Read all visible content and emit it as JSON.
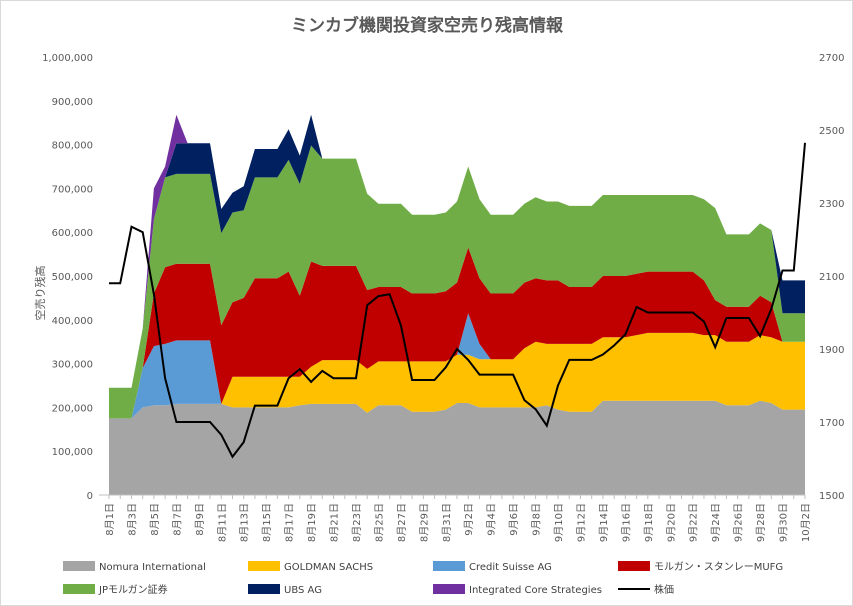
{
  "chart_data": {
    "type": "area",
    "title": "ミンカブ機関投資家空売り残高情報",
    "ylabel": "空売り残高",
    "ylim": [
      0,
      1000000
    ],
    "y2lim": [
      1500,
      2700
    ],
    "grid": false,
    "legend_position": "bottom",
    "y_ticks": [
      "1,000,000",
      "900,000",
      "800,000",
      "700,000",
      "600,000",
      "500,000",
      "400,000",
      "300,000",
      "200,000",
      "100,000",
      "0"
    ],
    "y2_ticks": [
      "2700",
      "2500",
      "2300",
      "2100",
      "1900",
      "1700",
      "1500"
    ],
    "x_tick_labels": [
      "8月1日",
      "8月3日",
      "8月5日",
      "8月7日",
      "8月9日",
      "8月11日",
      "8月13日",
      "8月15日",
      "8月17日",
      "8月19日",
      "8月21日",
      "8月23日",
      "8月25日",
      "8月27日",
      "8月29日",
      "8月31日",
      "9月2日",
      "9月4日",
      "9月6日",
      "9月8日",
      "9月10日",
      "9月12日",
      "9月14日",
      "9月16日",
      "9月18日",
      "9月20日",
      "9月22日",
      "9月24日",
      "9月26日",
      "9月28日",
      "9月30日",
      "10月2日"
    ],
    "x": [
      "8/1",
      "8/2",
      "8/3",
      "8/4",
      "8/5",
      "8/6",
      "8/7",
      "8/8",
      "8/9",
      "8/10",
      "8/11",
      "8/12",
      "8/13",
      "8/14",
      "8/15",
      "8/16",
      "8/17",
      "8/18",
      "8/19",
      "8/20",
      "8/21",
      "8/22",
      "8/23",
      "8/24",
      "8/25",
      "8/26",
      "8/27",
      "8/28",
      "8/29",
      "8/30",
      "8/31",
      "9/1",
      "9/2",
      "9/3",
      "9/4",
      "9/5",
      "9/6",
      "9/7",
      "9/8",
      "9/9",
      "9/10",
      "9/11",
      "9/12",
      "9/13",
      "9/14",
      "9/15",
      "9/16",
      "9/17",
      "9/18",
      "9/19",
      "9/20",
      "9/21",
      "9/22",
      "9/23",
      "9/24",
      "9/25",
      "9/26",
      "9/27",
      "9/28",
      "9/29",
      "9/30",
      "10/1",
      "10/2"
    ],
    "series": [
      {
        "name": "Nomura International",
        "color": "#a5a5a5",
        "values": [
          175000,
          175000,
          175000,
          200000,
          205000,
          205000,
          208000,
          208000,
          208000,
          208000,
          208000,
          200000,
          200000,
          200000,
          200000,
          200000,
          200000,
          205000,
          208000,
          208000,
          208000,
          208000,
          208000,
          188000,
          205000,
          205000,
          205000,
          190000,
          190000,
          190000,
          195000,
          210000,
          210000,
          200000,
          200000,
          200000,
          200000,
          200000,
          200000,
          205000,
          195000,
          190000,
          190000,
          190000,
          215000,
          215000,
          215000,
          215000,
          215000,
          215000,
          215000,
          215000,
          215000,
          215000,
          215000,
          205000,
          205000,
          205000,
          215000,
          210000,
          195000,
          195000,
          195000
        ]
      },
      {
        "name": "GOLDMAN SACHS",
        "color": "#ffc000",
        "values": [
          0,
          0,
          0,
          0,
          0,
          0,
          0,
          0,
          0,
          0,
          0,
          70000,
          70000,
          70000,
          70000,
          70000,
          70000,
          65000,
          85000,
          100000,
          100000,
          100000,
          100000,
          100000,
          100000,
          100000,
          100000,
          115000,
          115000,
          115000,
          110000,
          110000,
          110000,
          110000,
          110000,
          110000,
          110000,
          135000,
          150000,
          140000,
          150000,
          155000,
          155000,
          155000,
          145000,
          145000,
          145000,
          150000,
          155000,
          155000,
          155000,
          155000,
          155000,
          150000,
          150000,
          145000,
          145000,
          145000,
          150000,
          150000,
          155000,
          155000,
          155000
        ]
      },
      {
        "name": "Credit Suisse AG",
        "color": "#5b9bd5",
        "values": [
          0,
          0,
          0,
          90000,
          135000,
          140000,
          145000,
          145000,
          145000,
          145000,
          0,
          0,
          0,
          0,
          0,
          0,
          0,
          0,
          0,
          0,
          0,
          0,
          0,
          0,
          0,
          0,
          0,
          0,
          0,
          0,
          0,
          0,
          95000,
          35000,
          0,
          0,
          0,
          0,
          0,
          0,
          0,
          0,
          0,
          0,
          0,
          0,
          0,
          0,
          0,
          0,
          0,
          0,
          0,
          0,
          0,
          0,
          0,
          0,
          0,
          0,
          0,
          0,
          0
        ]
      },
      {
        "name": "モルガン・スタンレーMUFG",
        "color": "#c00000",
        "values": [
          0,
          0,
          0,
          0,
          120000,
          175000,
          175000,
          175000,
          175000,
          175000,
          180000,
          170000,
          180000,
          225000,
          225000,
          225000,
          240000,
          185000,
          240000,
          215000,
          215000,
          215000,
          215000,
          180000,
          170000,
          170000,
          170000,
          155000,
          155000,
          155000,
          160000,
          165000,
          150000,
          150000,
          150000,
          150000,
          150000,
          150000,
          145000,
          145000,
          145000,
          130000,
          130000,
          130000,
          140000,
          140000,
          140000,
          140000,
          140000,
          140000,
          140000,
          140000,
          140000,
          125000,
          80000,
          80000,
          80000,
          80000,
          90000,
          80000,
          0,
          0,
          0
        ]
      },
      {
        "name": "JPモルガン証券",
        "color": "#70ad47",
        "values": [
          70000,
          70000,
          70000,
          90000,
          170000,
          205000,
          205000,
          205000,
          205000,
          205000,
          210000,
          205000,
          200000,
          230000,
          230000,
          230000,
          255000,
          255000,
          265000,
          245000,
          245000,
          245000,
          245000,
          220000,
          190000,
          190000,
          190000,
          180000,
          180000,
          180000,
          180000,
          185000,
          185000,
          180000,
          180000,
          180000,
          180000,
          180000,
          185000,
          180000,
          180000,
          185000,
          185000,
          185000,
          185000,
          185000,
          185000,
          180000,
          175000,
          175000,
          175000,
          175000,
          175000,
          185000,
          210000,
          165000,
          165000,
          165000,
          165000,
          165000,
          65000,
          65000,
          65000
        ]
      },
      {
        "name": "UBS AG",
        "color": "#002060",
        "values": [
          0,
          0,
          0,
          0,
          0,
          0,
          70000,
          70000,
          70000,
          70000,
          55000,
          45000,
          55000,
          65000,
          65000,
          65000,
          70000,
          65000,
          70000,
          0,
          0,
          0,
          0,
          0,
          0,
          0,
          0,
          0,
          0,
          0,
          0,
          0,
          0,
          0,
          0,
          0,
          0,
          0,
          0,
          0,
          0,
          0,
          0,
          0,
          0,
          0,
          0,
          0,
          0,
          0,
          0,
          0,
          0,
          0,
          0,
          0,
          0,
          0,
          0,
          0,
          75000,
          75000,
          75000
        ]
      },
      {
        "name": "Integrated Core Strategies",
        "color": "#7030a0",
        "values": [
          0,
          0,
          0,
          0,
          70000,
          25000,
          65000,
          0,
          0,
          0,
          0,
          0,
          0,
          0,
          0,
          0,
          0,
          0,
          0,
          0,
          0,
          0,
          0,
          0,
          0,
          0,
          0,
          0,
          0,
          0,
          0,
          0,
          0,
          0,
          0,
          0,
          0,
          0,
          0,
          0,
          0,
          0,
          0,
          0,
          0,
          0,
          0,
          0,
          0,
          0,
          0,
          0,
          0,
          0,
          0,
          0,
          0,
          0,
          0,
          0,
          0,
          0,
          0
        ]
      },
      {
        "name": "株価",
        "color": "#000000",
        "axis": "right",
        "values": [
          2080,
          2080,
          2235,
          2220,
          2050,
          1820,
          1700,
          1700,
          1700,
          1700,
          1665,
          1605,
          1645,
          1745,
          1745,
          1745,
          1820,
          1845,
          1810,
          1840,
          1820,
          1820,
          1820,
          2020,
          2045,
          2050,
          1965,
          1815,
          1815,
          1815,
          1850,
          1900,
          1870,
          1830,
          1830,
          1830,
          1830,
          1760,
          1735,
          1690,
          1800,
          1870,
          1870,
          1870,
          1885,
          1910,
          1940,
          2015,
          2000,
          2000,
          2000,
          2000,
          2000,
          1975,
          1905,
          1985,
          1985,
          1985,
          1935,
          2010,
          2115,
          2115,
          2465
        ]
      }
    ]
  }
}
